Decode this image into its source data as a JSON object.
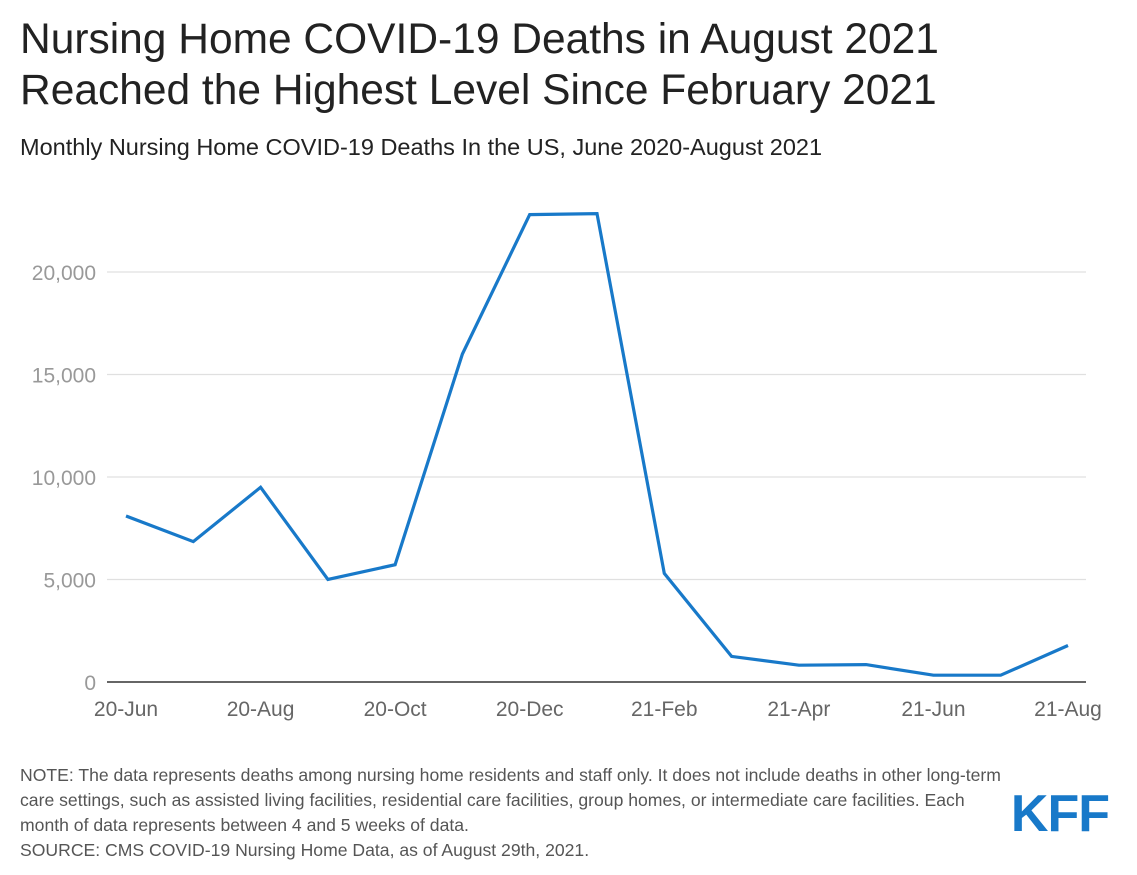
{
  "header": {
    "title": "Nursing Home COVID-19 Deaths in August 2021 Reached the Highest Level Since February 2021",
    "subtitle": "Monthly Nursing Home COVID-19 Deaths In the US, June 2020-August 2021"
  },
  "footer": {
    "note": "NOTE: The data represents deaths among nursing home residents and staff only. It does not include deaths in other long-term care settings, such as assisted living facilities, residential care facilities, group homes, or intermediate care facilities. Each month of data represents between 4 and 5 weeks of data.",
    "source": "SOURCE: CMS COVID-19 Nursing Home Data, as of August 29th, 2021.",
    "logo": "KFF"
  },
  "colors": {
    "line": "#1879c9",
    "grid": "#e0e0e0",
    "axis": "#333333",
    "tick_label": "#999999",
    "x_tick_label": "#666666",
    "logo": "#1879c9"
  },
  "chart_data": {
    "type": "line",
    "x": [
      "20-Jun",
      "20-Jul",
      "20-Aug",
      "20-Sep",
      "20-Oct",
      "20-Nov",
      "20-Dec",
      "21-Jan",
      "21-Feb",
      "21-Mar",
      "21-Apr",
      "21-May",
      "21-Jun",
      "21-Jul",
      "21-Aug"
    ],
    "x_tick_labels": [
      "20-Jun",
      "20-Aug",
      "20-Oct",
      "20-Dec",
      "21-Feb",
      "21-Apr",
      "21-Jun",
      "21-Aug"
    ],
    "series": [
      {
        "values": [
          8100,
          6850,
          9500,
          5000,
          5720,
          16000,
          22800,
          22850,
          5300,
          1250,
          820,
          850,
          330,
          330,
          1780
        ]
      }
    ],
    "ylim": [
      0,
      23000
    ],
    "y_ticks": [
      0,
      5000,
      10000,
      15000,
      20000
    ],
    "y_tick_labels": [
      "0",
      "5,000",
      "10,000",
      "15,000",
      "20,000"
    ],
    "grid": true,
    "legend": false
  }
}
